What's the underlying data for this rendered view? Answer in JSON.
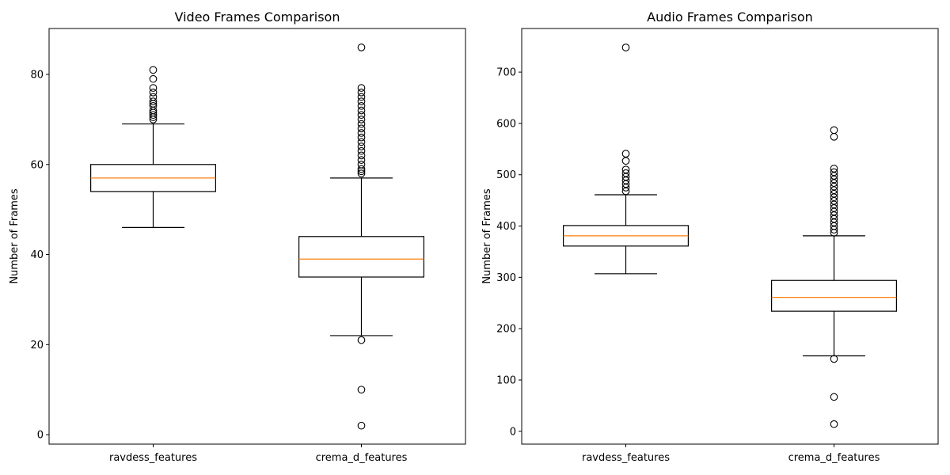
{
  "chart_data": [
    {
      "type": "boxplot",
      "title": "Video Frames Comparison",
      "xlabel": "",
      "ylabel": "Number of Frames",
      "ylim": [
        -2.1,
        90.2
      ],
      "yticks": [
        0,
        20,
        40,
        60,
        80
      ],
      "categories": [
        "ravdess_features",
        "crema_d_features"
      ],
      "colors": {
        "box": "#000000",
        "median": "#ff7f0e"
      },
      "boxes": [
        {
          "category": "ravdess_features",
          "whisker_low": 46,
          "q1": 54,
          "median": 57,
          "q3": 60,
          "whisker_high": 69,
          "outliers": [
            70,
            70.5,
            71,
            71.5,
            72,
            73,
            73.5,
            74,
            75,
            76,
            77,
            79,
            81
          ]
        },
        {
          "category": "crema_d_features",
          "whisker_low": 22,
          "q1": 35,
          "median": 39,
          "q3": 44,
          "whisker_high": 57,
          "outliers": [
            2,
            10,
            21,
            58,
            58.5,
            59,
            60,
            61,
            62,
            63,
            64,
            65,
            66,
            67,
            68,
            69,
            70,
            71,
            72,
            73,
            74,
            75,
            76,
            77,
            86
          ]
        }
      ]
    },
    {
      "type": "boxplot",
      "title": "Audio Frames Comparison",
      "xlabel": "",
      "ylabel": "Number of Frames",
      "ylim": [
        -25,
        785
      ],
      "yticks": [
        0,
        100,
        200,
        300,
        400,
        500,
        600,
        700
      ],
      "categories": [
        "ravdess_features",
        "crema_d_features"
      ],
      "colors": {
        "box": "#000000",
        "median": "#ff7f0e"
      },
      "boxes": [
        {
          "category": "ravdess_features",
          "whisker_low": 307,
          "q1": 361,
          "median": 381,
          "q3": 401,
          "whisker_high": 461,
          "outliers": [
            468,
            475,
            482,
            489,
            496,
            503,
            510,
            527,
            541,
            748
          ]
        },
        {
          "category": "crema_d_features",
          "whisker_low": 147,
          "q1": 234,
          "median": 261,
          "q3": 294,
          "whisker_high": 381,
          "outliers": [
            14,
            67,
            141,
            387,
            393,
            400,
            407,
            414,
            421,
            428,
            435,
            442,
            449,
            456,
            463,
            470,
            477,
            484,
            491,
            498,
            505,
            512,
            574,
            587
          ]
        }
      ]
    }
  ]
}
